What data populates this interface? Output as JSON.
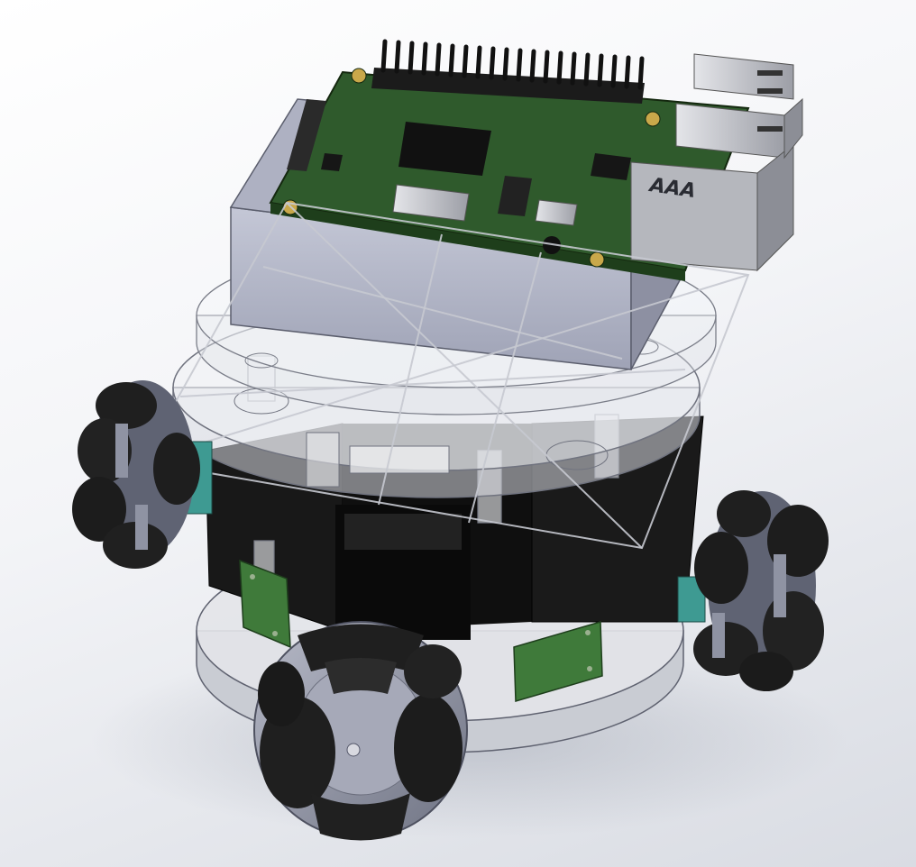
{
  "scene": {
    "subject": "omni-wheel-robot-cad-model",
    "background_color": "#eceef2",
    "colors": {
      "pcb": "#2f5a2c",
      "plastic": "#b9bcc8",
      "motor": "#151515",
      "wheel_hub": "#8f93a3",
      "roller": "#1f1f1f",
      "sensor_board": "#3f7a3a",
      "teal_mount": "#3e9a92",
      "metal": "#c9cacf"
    }
  },
  "board_logo": {
    "text": "AAA"
  }
}
